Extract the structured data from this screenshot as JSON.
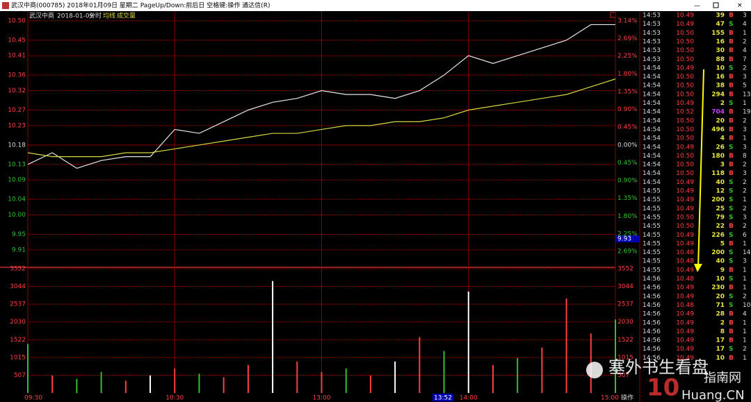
{
  "window_title": "武汉中商(000785) 2018年01月09日 星期二 PageUp/Down:前后日 空格键:操作 通达信(R)",
  "header": {
    "stock": "武汉中商",
    "date": "2018-01-09",
    "mode": "分时"
  },
  "cursor": {
    "price": "9.93",
    "time": "13:52"
  },
  "bottom_button": "操作",
  "watermark": {
    "text": "塞外书生看盘",
    "logo_num": "10",
    "logo_site": "Huang.CN",
    "logo_cn": "指南网"
  },
  "chart_data": [
    {
      "type": "line",
      "x": [
        0,
        10,
        20,
        30,
        40,
        50,
        60,
        70,
        80,
        90,
        100,
        110,
        120,
        130,
        140,
        150,
        160,
        170,
        180,
        190,
        200,
        210,
        220,
        230,
        240
      ],
      "xlim": [
        0,
        240
      ],
      "ylim": [
        9.865,
        10.523
      ],
      "yticks": [
        {
          "value": 10.5,
          "label": "10.50"
        },
        10.45,
        10.41,
        10.36,
        10.32,
        10.27,
        10.23,
        10.18,
        10.13,
        10.09,
        10.04,
        {
          "value": 10,
          "label": "10.00"
        },
        9.95,
        9.91
      ],
      "y2lim": [
        -3.094,
        3.369
      ],
      "y2ticks": [
        {
          "value": 3.14,
          "label": "3.14%"
        },
        {
          "value": 2.69,
          "label": "2.69%"
        },
        {
          "value": 2.25,
          "label": "2.25%"
        },
        {
          "value": 1.8,
          "label": "1.80%"
        },
        {
          "value": 1.35,
          "label": "1.35%"
        },
        {
          "value": 0.9,
          "label": "0.90%"
        },
        {
          "value": 0.45,
          "label": "0.45%"
        },
        {
          "value": 0,
          "label": "0.00%"
        },
        {
          "value": -0.45,
          "label": "0.45%"
        },
        {
          "value": -0.9,
          "label": "0.90%"
        },
        {
          "value": -1.35,
          "label": "1.35%"
        },
        {
          "value": -1.8,
          "label": "1.80%"
        },
        {
          "value": -2.25,
          "label": "2.25%"
        },
        {
          "value": -2.69,
          "label": "2.69%"
        }
      ],
      "series": [
        {
          "color": "#e8e8e8",
          "values": [
            10.13,
            10.16,
            10.12,
            10.14,
            10.15,
            10.15,
            10.22,
            10.21,
            10.24,
            10.27,
            10.29,
            10.3,
            10.32,
            10.31,
            10.31,
            10.3,
            10.32,
            10.36,
            10.41,
            10.39,
            10.41,
            10.43,
            10.45,
            10.49,
            10.49
          ]
        },
        {
          "name": "均线",
          "color": "#d8d840",
          "values": [
            10.16,
            10.15,
            10.15,
            10.15,
            10.16,
            10.16,
            10.17,
            10.18,
            10.19,
            10.2,
            10.21,
            10.21,
            10.22,
            10.23,
            10.23,
            10.24,
            10.24,
            10.25,
            10.27,
            10.28,
            10.29,
            10.3,
            10.31,
            10.33,
            10.35
          ]
        }
      ]
    },
    {
      "type": "bar",
      "title": "成交量",
      "x": [
        0,
        10,
        20,
        30,
        40,
        50,
        60,
        70,
        80,
        90,
        100,
        110,
        120,
        130,
        140,
        150,
        160,
        170,
        180,
        190,
        200,
        210,
        220,
        230,
        240
      ],
      "xlim": [
        0,
        240
      ],
      "xticks": [
        {
          "value": 0,
          "label": "09:30"
        },
        {
          "value": 60,
          "label": "10:30"
        },
        {
          "value": 120,
          "label": "13:00"
        },
        {
          "value": 180,
          "label": "14:00"
        },
        {
          "value": 240,
          "label": "15:00"
        }
      ],
      "ylim": [
        0,
        3552
      ],
      "yticks": [
        3552,
        3044,
        2537,
        2030,
        1522,
        1015,
        507
      ],
      "values": [
        1400,
        500,
        400,
        600,
        350,
        500,
        700,
        550,
        450,
        800,
        3200,
        900,
        600,
        700,
        500,
        900,
        1600,
        1200,
        2900,
        800,
        1000,
        1300,
        2700,
        1700,
        2100
      ],
      "bar_colors": [
        "#30c030",
        "#ff4040",
        "#30c030",
        "#30c030",
        "#ff4040",
        "#ffffff",
        "#ff4040",
        "#30c030",
        "#ff4040",
        "#ff4040",
        "#ffffff",
        "#ff4040",
        "#ff4040",
        "#30c030",
        "#ff4040",
        "#ffffff",
        "#ff4040",
        "#30c030",
        "#ffffff",
        "#ff4040",
        "#30c030",
        "#ff4040",
        "#ff4040",
        "#ff4040",
        "#30c030"
      ]
    }
  ],
  "ticks_table": {
    "rows": [
      [
        "14:53",
        "10.49",
        39,
        "B",
        3
      ],
      [
        "14:53",
        "10.49",
        47,
        "S",
        4
      ],
      [
        "14:53",
        "10.50",
        155,
        "B",
        1
      ],
      [
        "14:53",
        "10.50",
        16,
        "B",
        2
      ],
      [
        "14:53",
        "10.50",
        30,
        "B",
        4
      ],
      [
        "14:53",
        "10.50",
        88,
        "B",
        7
      ],
      [
        "14:54",
        "10.49",
        10,
        "S",
        2
      ],
      [
        "14:54",
        "10.50",
        16,
        "B",
        3
      ],
      [
        "14:54",
        "10.50",
        38,
        "B",
        5
      ],
      [
        "14:54",
        "10.50",
        294,
        "B",
        13
      ],
      [
        "14:54",
        "10.49",
        2,
        "S",
        1
      ],
      [
        "14:54",
        "10.52",
        704,
        "B",
        19
      ],
      [
        "14:54",
        "10.50",
        20,
        "B",
        2
      ],
      [
        "14:54",
        "10.50",
        496,
        "B",
        3
      ],
      [
        "14:54",
        "10.50",
        4,
        "B",
        1
      ],
      [
        "14:54",
        "10.49",
        26,
        "S",
        3
      ],
      [
        "14:54",
        "10.50",
        180,
        "B",
        8
      ],
      [
        "14:54",
        "10.50",
        3,
        "B",
        2
      ],
      [
        "14:54",
        "10.50",
        118,
        "B",
        3
      ],
      [
        "14:54",
        "10.49",
        40,
        "S",
        2
      ],
      [
        "14:55",
        "10.49",
        12,
        "S",
        2
      ],
      [
        "14:55",
        "10.49",
        200,
        "S",
        1
      ],
      [
        "14:55",
        "10.49",
        25,
        "S",
        2
      ],
      [
        "14:55",
        "10.50",
        79,
        "S",
        3
      ],
      [
        "14:55",
        "10.50",
        22,
        "B",
        2
      ],
      [
        "14:55",
        "10.49",
        226,
        "S",
        6
      ],
      [
        "14:55",
        "10.49",
        5,
        "B",
        1
      ],
      [
        "14:55",
        "10.48",
        200,
        "S",
        14
      ],
      [
        "14:55",
        "10.48",
        40,
        "S",
        3
      ],
      [
        "14:55",
        "10.49",
        9,
        "B",
        1
      ],
      [
        "14:56",
        "10.48",
        10,
        "S",
        1
      ],
      [
        "14:56",
        "10.49",
        230,
        "B",
        1
      ],
      [
        "14:56",
        "10.49",
        20,
        "S",
        2
      ],
      [
        "14:56",
        "10.48",
        71,
        "S",
        10
      ],
      [
        "14:56",
        "10.49",
        28,
        "B",
        4
      ],
      [
        "14:56",
        "10.49",
        2,
        "B",
        1
      ],
      [
        "14:56",
        "10.49",
        8,
        "B",
        1
      ],
      [
        "14:56",
        "10.49",
        17,
        "B",
        1
      ],
      [
        "14:56",
        "10.49",
        17,
        "S",
        2
      ],
      [
        "14:56",
        "10.49",
        10,
        "B",
        1
      ]
    ]
  }
}
